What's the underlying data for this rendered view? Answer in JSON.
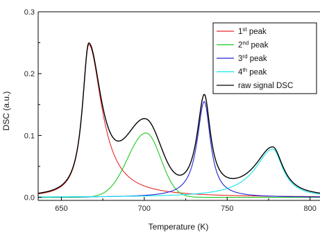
{
  "chart_data": {
    "type": "line",
    "xlabel": "Temperature (K)",
    "ylabel": "DSC (a.u.)",
    "xlim": [
      636,
      806
    ],
    "ylim": [
      -0.005,
      0.3
    ],
    "x_ticks": [
      650,
      700,
      750,
      800
    ],
    "x_tick_labels": [
      "650",
      "700",
      "750",
      "800"
    ],
    "y_ticks": [
      0.0,
      0.1,
      0.2,
      0.3
    ],
    "y_tick_labels": [
      "0.0",
      "0.1",
      "0.2",
      "0.3"
    ],
    "grid": false,
    "legend_position": "top-right",
    "legend": [
      {
        "label_base": "1",
        "label_sup": "st",
        "label_rest": " peak",
        "color": "#e8282b"
      },
      {
        "label_base": "2",
        "label_sup": "nd",
        "label_rest": " peak",
        "color": "#1ec81e"
      },
      {
        "label_base": "3",
        "label_sup": "rd",
        "label_rest": " peak",
        "color": "#2020d8"
      },
      {
        "label_base": "4",
        "label_sup": "th",
        "label_rest": " peak",
        "color": "#12e6ec"
      },
      {
        "label_base": "raw signal DSC",
        "label_sup": "",
        "label_rest": "",
        "color": "#000000"
      }
    ],
    "series": [
      {
        "name": "1st peak",
        "color": "#e8282b",
        "peak": {
          "center": 666.5,
          "height": 0.247,
          "hwhm_left": 4.6,
          "hwhm_right": 9.5,
          "shape": "lorentz"
        }
      },
      {
        "name": "2nd peak",
        "color": "#1ec81e",
        "peak": {
          "center": 701,
          "height": 0.104,
          "hwhm_left": 13,
          "hwhm_right": 10.5,
          "shape": "gauss"
        }
      },
      {
        "name": "3rd peak",
        "color": "#2020d8",
        "peak": {
          "center": 736.2,
          "height": 0.155,
          "hwhm_left": 5.2,
          "hwhm_right": 4.5,
          "shape": "lorentz"
        }
      },
      {
        "name": "4th peak",
        "color": "#12e6ec",
        "peak": {
          "center": 777.5,
          "height": 0.078,
          "hwhm_left": 13,
          "hwhm_right": 7.5,
          "shape": "lorentz"
        }
      },
      {
        "name": "raw signal DSC",
        "color": "#000000",
        "composite": true
      }
    ]
  }
}
